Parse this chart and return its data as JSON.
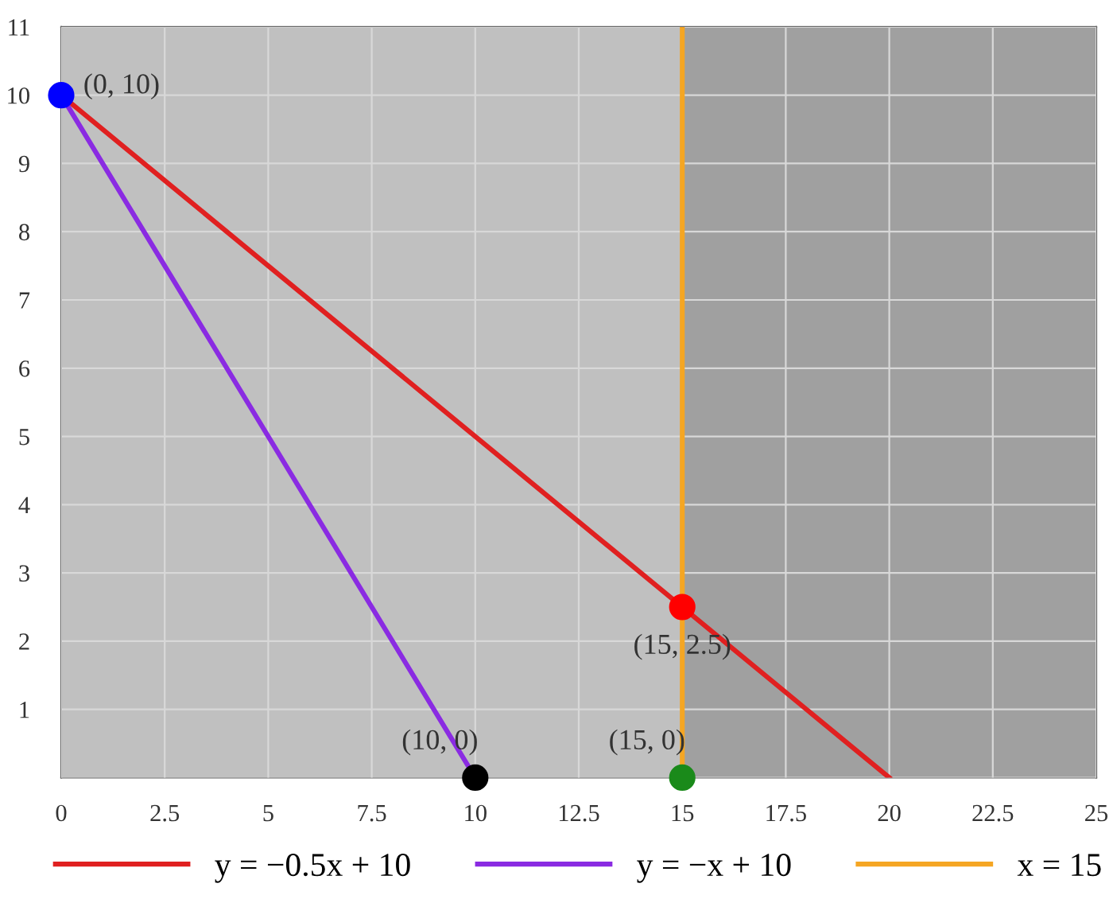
{
  "chart_data": {
    "type": "line",
    "xlim": [
      0,
      25
    ],
    "ylim": [
      0,
      11
    ],
    "xticks": [
      0,
      2.5,
      5,
      7.5,
      10,
      12.5,
      15,
      17.5,
      20,
      22.5,
      25
    ],
    "yticks": [
      {
        "value": 0,
        "label": null
      },
      1,
      2,
      3,
      4,
      5,
      6,
      7,
      8,
      9,
      10,
      11
    ],
    "grid": true,
    "legend": "bottom",
    "bands": [
      {
        "axis": "x",
        "from": 15,
        "to": 25,
        "color": "#a0a0a0"
      }
    ],
    "series": [
      {
        "name": "y = −0.5x + 10",
        "color": "#e02020",
        "x": [
          0,
          20
        ],
        "values": [
          10,
          0
        ]
      },
      {
        "name": "y = −x + 10",
        "color": "#8a2be2",
        "x": [
          0,
          10
        ],
        "values": [
          10,
          0
        ]
      },
      {
        "name": "x = 15",
        "color": "#f5a623",
        "x": [
          15,
          15
        ],
        "values": [
          0,
          11
        ]
      },
      {
        "type": "scatter",
        "marker": "circle",
        "x": [
          0,
          10,
          15,
          15
        ],
        "values": [
          10,
          0,
          0,
          2.5
        ],
        "colors": [
          "#0000ff",
          "#000000",
          "#1a8a1a",
          "#ff0000"
        ]
      }
    ],
    "annotations": [
      {
        "text": "(0, 10)",
        "x": 0,
        "y": 10
      },
      {
        "text": "(10, 0)",
        "x": 10,
        "y": 0
      },
      {
        "text": "(15, 0)",
        "x": 15,
        "y": 0
      },
      {
        "text": "(15, 2.5)",
        "x": 15,
        "y": 2.5
      }
    ]
  }
}
